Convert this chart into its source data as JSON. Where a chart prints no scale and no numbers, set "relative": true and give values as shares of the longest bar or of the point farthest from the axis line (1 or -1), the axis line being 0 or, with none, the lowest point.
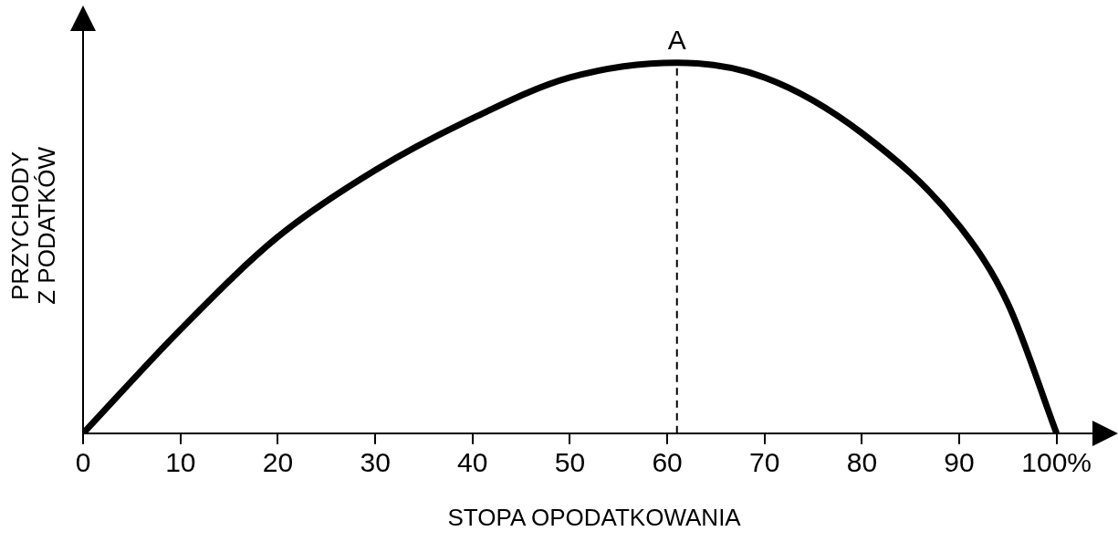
{
  "chart_data": {
    "type": "line",
    "xlabel": "STOPA OPODATKOWANIA",
    "ylabel": "PRZYCHODY\nZ PODATKÓW",
    "relative": true,
    "series": [
      {
        "color": "#000000",
        "x": [
          0,
          10,
          20,
          30,
          40,
          50,
          61,
          70,
          80,
          90,
          95,
          100
        ],
        "values": [
          0,
          0.28,
          0.53,
          0.71,
          0.85,
          0.96,
          1,
          0.96,
          0.81,
          0.56,
          0.35,
          0
        ]
      }
    ],
    "xlim": [
      0,
      105
    ],
    "xticks": [
      0,
      10,
      20,
      30,
      40,
      50,
      60,
      70,
      80,
      90,
      {
        "value": 100,
        "label": "100%"
      }
    ],
    "ref_lines": [
      {
        "axis": "x",
        "value": 61,
        "line_style": "dashed",
        "color": "#000000"
      }
    ],
    "annotations": [
      {
        "text": "A",
        "x": 61,
        "y": 1
      }
    ],
    "grid": false,
    "legend": false,
    "marker": "none",
    "line_style": "solid"
  }
}
